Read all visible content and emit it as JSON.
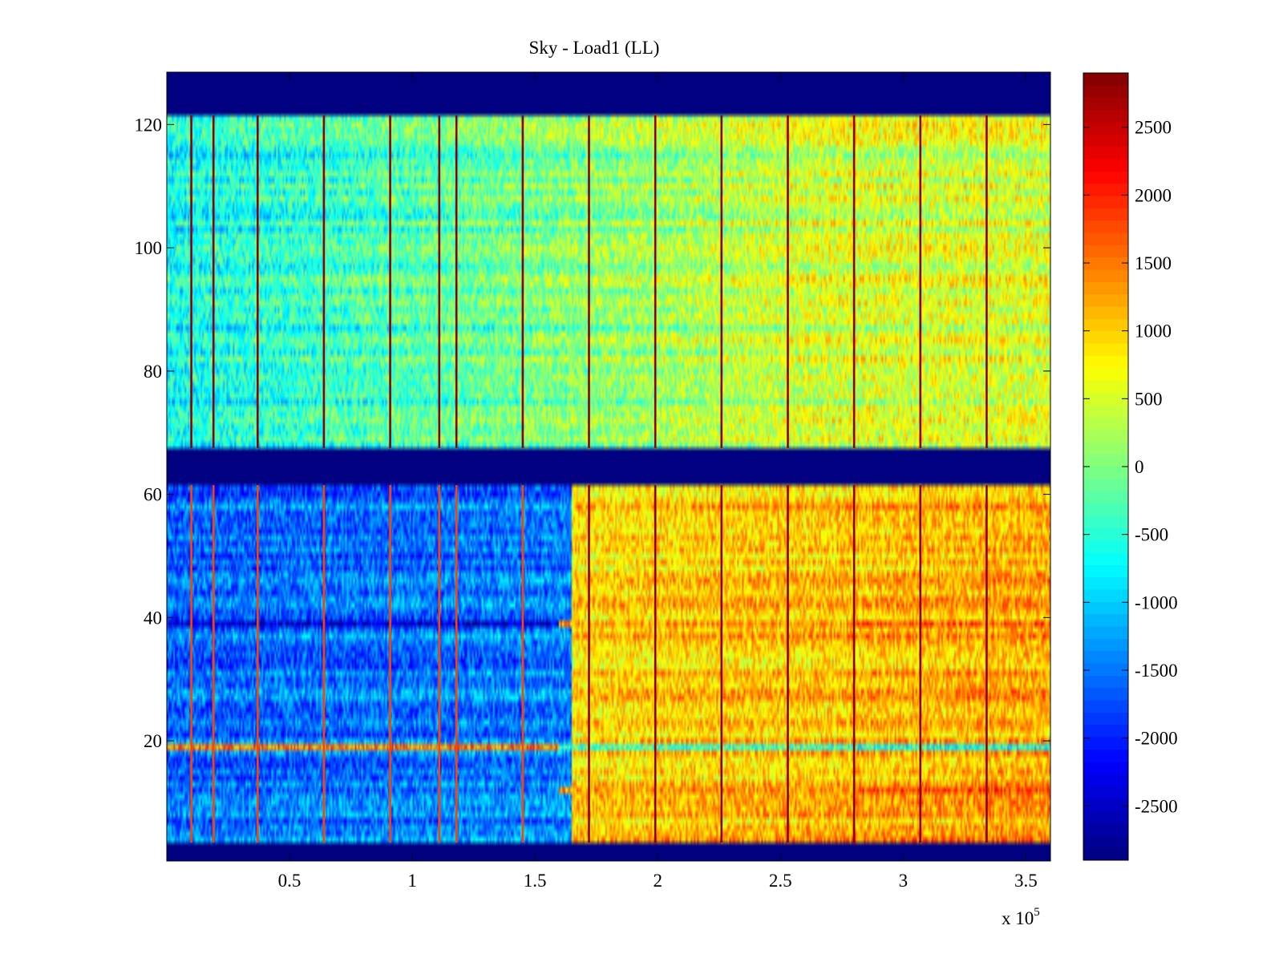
{
  "chart_data": {
    "type": "heatmap",
    "title": "Sky - Load1 (LL)",
    "xlabel": "",
    "ylabel": "",
    "x_multiplier_label": "x 10",
    "x_multiplier_exponent": "5",
    "xlim": [
      0,
      3.6
    ],
    "ylim": [
      0.5,
      128.5
    ],
    "x_ticks": [
      0.5,
      1,
      1.5,
      2,
      2.5,
      3,
      3.5
    ],
    "x_tick_labels": [
      "0.5",
      "1",
      "1.5",
      "2",
      "2.5",
      "3",
      "3.5"
    ],
    "y_ticks": [
      20,
      40,
      60,
      80,
      100,
      120
    ],
    "y_tick_labels": [
      "20",
      "40",
      "60",
      "80",
      "100",
      "120"
    ],
    "colormap": "jet",
    "color_range": [
      -2900,
      2900
    ],
    "colorbar_ticks": [
      2500,
      2000,
      1500,
      1000,
      500,
      0,
      -500,
      -1000,
      -1500,
      -2000,
      -2500
    ],
    "colorbar_tick_labels": [
      "2500",
      "2000",
      "1500",
      "1000",
      "500",
      "0",
      "-500",
      "-1000",
      "-1500",
      "-2000",
      "-2500"
    ],
    "empty_row_bands": [
      {
        "y_range": [
          121.5,
          128.5
        ],
        "value": -2900
      },
      {
        "y_range": [
          61.5,
          67.5
        ],
        "value": -2900
      },
      {
        "y_range": [
          0.5,
          3.5
        ],
        "value": -2900
      }
    ],
    "stripe_x_positions": [
      0.1,
      0.19,
      0.37,
      0.64,
      0.91,
      1.11,
      1.18,
      1.45,
      1.72,
      1.99,
      2.26,
      2.53,
      2.8,
      3.07,
      3.34
    ],
    "stripe_value": 2800,
    "stripe_value_lower_left": 1800,
    "highlighted_rows": [
      {
        "row": 39,
        "description": "strong negative until x≈1.6, positive after",
        "values_left": -2600,
        "values_right": 1500
      },
      {
        "row": 19,
        "description": "positive spots left, negative band right",
        "values_left": 1200,
        "values_right": -900
      },
      {
        "row": 12,
        "description": "strong positive at far right",
        "values_right": 1900
      }
    ],
    "upper_block_mean": {
      "rows": [
        68,
        121
      ],
      "left_mean": -700,
      "right_mean": 500
    },
    "lower_block_mean": {
      "rows": [
        4,
        61
      ],
      "left_mean": -1600,
      "right_mean": 1100
    }
  }
}
